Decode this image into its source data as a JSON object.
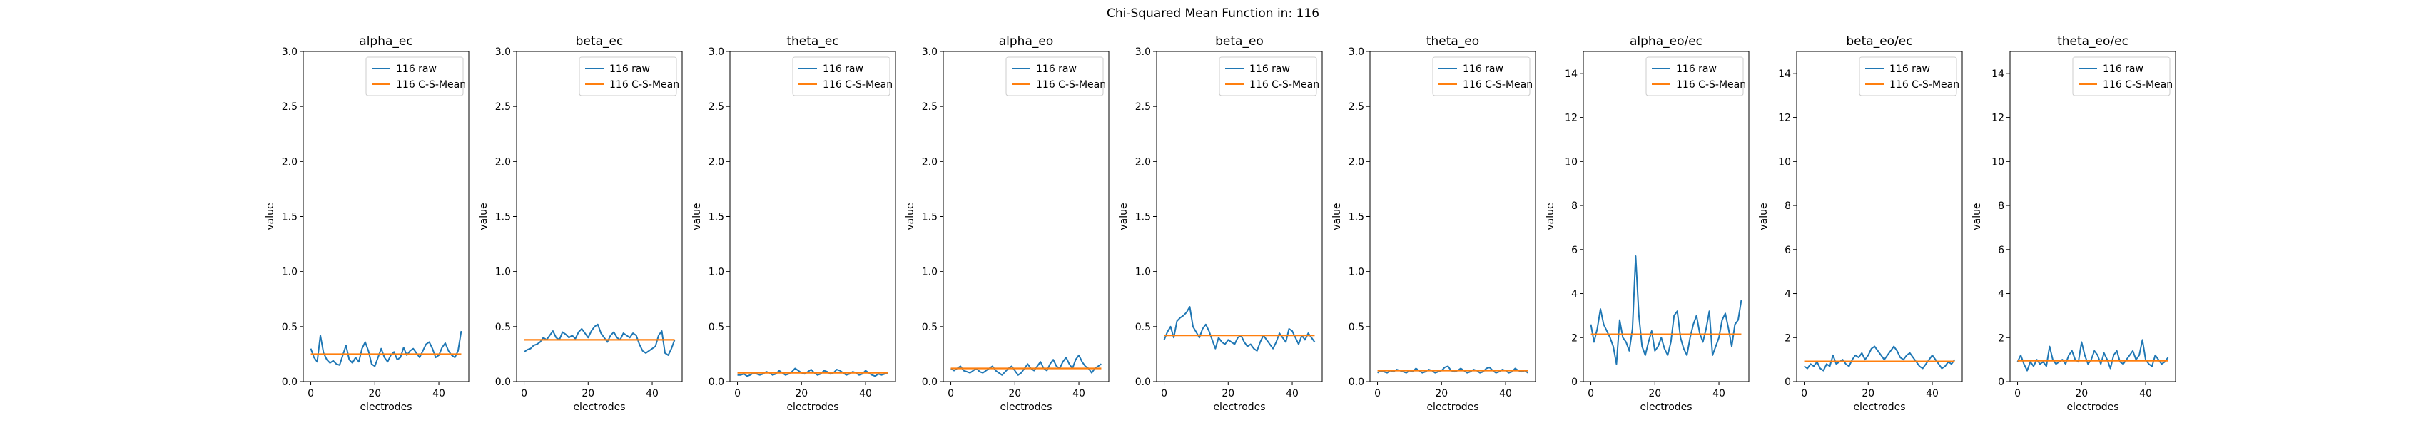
{
  "figure": {
    "title": "Chi-Squared Mean Function in: 116"
  },
  "colors": {
    "raw": "#1f77b4",
    "mean": "#ff7f0e",
    "axis": "#000000",
    "legend_border": "#cccccc"
  },
  "chart_data": [
    {
      "type": "line",
      "title": "alpha_ec",
      "xlabel": "electrodes",
      "ylabel": "value",
      "xlim": [
        -2.35,
        49.35
      ],
      "ylim": [
        0,
        3.0
      ],
      "xticks": [
        0,
        20,
        40
      ],
      "yticks": [
        0.0,
        0.5,
        1.0,
        1.5,
        2.0,
        2.5,
        3.0
      ],
      "legend_position": "top-right",
      "grid": false,
      "series": [
        {
          "name": "116 raw",
          "values": [
            0.3,
            0.22,
            0.18,
            0.42,
            0.26,
            0.2,
            0.17,
            0.19,
            0.16,
            0.15,
            0.24,
            0.33,
            0.2,
            0.17,
            0.22,
            0.18,
            0.3,
            0.36,
            0.28,
            0.16,
            0.14,
            0.22,
            0.3,
            0.22,
            0.18,
            0.24,
            0.27,
            0.2,
            0.22,
            0.31,
            0.24,
            0.28,
            0.3,
            0.26,
            0.22,
            0.28,
            0.34,
            0.36,
            0.3,
            0.22,
            0.24,
            0.31,
            0.35,
            0.28,
            0.24,
            0.22,
            0.28,
            0.46
          ]
        },
        {
          "name": "116 C-S-Mean",
          "values": [
            0.25,
            0.25
          ]
        }
      ]
    },
    {
      "type": "line",
      "title": "beta_ec",
      "xlabel": "electrodes",
      "ylabel": "value",
      "xlim": [
        -2.35,
        49.35
      ],
      "ylim": [
        0,
        3.0
      ],
      "xticks": [
        0,
        20,
        40
      ],
      "yticks": [
        0.0,
        0.5,
        1.0,
        1.5,
        2.0,
        2.5,
        3.0
      ],
      "legend_position": "top-right",
      "grid": false,
      "series": [
        {
          "name": "116 raw",
          "values": [
            0.27,
            0.29,
            0.3,
            0.33,
            0.34,
            0.36,
            0.4,
            0.38,
            0.42,
            0.46,
            0.4,
            0.38,
            0.45,
            0.43,
            0.4,
            0.42,
            0.39,
            0.45,
            0.48,
            0.44,
            0.4,
            0.46,
            0.5,
            0.52,
            0.44,
            0.4,
            0.36,
            0.42,
            0.45,
            0.4,
            0.38,
            0.44,
            0.42,
            0.4,
            0.44,
            0.42,
            0.34,
            0.28,
            0.26,
            0.28,
            0.3,
            0.32,
            0.42,
            0.46,
            0.26,
            0.24,
            0.3,
            0.38
          ]
        },
        {
          "name": "116 C-S-Mean",
          "values": [
            0.38,
            0.38
          ]
        }
      ]
    },
    {
      "type": "line",
      "title": "theta_ec",
      "xlabel": "electrodes",
      "ylabel": "value",
      "xlim": [
        -2.35,
        49.35
      ],
      "ylim": [
        0,
        3.0
      ],
      "xticks": [
        0,
        20,
        40
      ],
      "yticks": [
        0.0,
        0.5,
        1.0,
        1.5,
        2.0,
        2.5,
        3.0
      ],
      "legend_position": "top-right",
      "grid": false,
      "series": [
        {
          "name": "116 raw",
          "values": [
            0.06,
            0.06,
            0.07,
            0.05,
            0.06,
            0.08,
            0.07,
            0.06,
            0.07,
            0.09,
            0.08,
            0.06,
            0.07,
            0.1,
            0.08,
            0.06,
            0.07,
            0.09,
            0.12,
            0.1,
            0.08,
            0.07,
            0.09,
            0.11,
            0.08,
            0.06,
            0.07,
            0.1,
            0.09,
            0.07,
            0.08,
            0.11,
            0.1,
            0.08,
            0.06,
            0.07,
            0.09,
            0.08,
            0.06,
            0.07,
            0.1,
            0.08,
            0.06,
            0.05,
            0.07,
            0.06,
            0.07,
            0.08
          ]
        },
        {
          "name": "116 C-S-Mean",
          "values": [
            0.08,
            0.08
          ]
        }
      ]
    },
    {
      "type": "line",
      "title": "alpha_eo",
      "xlabel": "electrodes",
      "ylabel": "value",
      "xlim": [
        -2.35,
        49.35
      ],
      "ylim": [
        0,
        3.0
      ],
      "xticks": [
        0,
        20,
        40
      ],
      "yticks": [
        0.0,
        0.5,
        1.0,
        1.5,
        2.0,
        2.5,
        3.0
      ],
      "legend_position": "top-right",
      "grid": false,
      "series": [
        {
          "name": "116 raw",
          "values": [
            0.12,
            0.1,
            0.12,
            0.14,
            0.1,
            0.09,
            0.08,
            0.1,
            0.12,
            0.09,
            0.08,
            0.1,
            0.12,
            0.14,
            0.1,
            0.08,
            0.06,
            0.09,
            0.12,
            0.14,
            0.1,
            0.06,
            0.08,
            0.12,
            0.16,
            0.12,
            0.1,
            0.14,
            0.18,
            0.12,
            0.1,
            0.16,
            0.2,
            0.14,
            0.12,
            0.18,
            0.22,
            0.16,
            0.12,
            0.2,
            0.24,
            0.18,
            0.14,
            0.12,
            0.08,
            0.12,
            0.14,
            0.16
          ]
        },
        {
          "name": "116 C-S-Mean",
          "values": [
            0.12,
            0.12
          ]
        }
      ]
    },
    {
      "type": "line",
      "title": "beta_eo",
      "xlabel": "electrodes",
      "ylabel": "value",
      "xlim": [
        -2.35,
        49.35
      ],
      "ylim": [
        0,
        3.0
      ],
      "xticks": [
        0,
        20,
        40
      ],
      "yticks": [
        0.0,
        0.5,
        1.0,
        1.5,
        2.0,
        2.5,
        3.0
      ],
      "legend_position": "top-right",
      "grid": false,
      "series": [
        {
          "name": "116 raw",
          "values": [
            0.38,
            0.45,
            0.5,
            0.4,
            0.55,
            0.58,
            0.6,
            0.63,
            0.68,
            0.5,
            0.45,
            0.4,
            0.48,
            0.52,
            0.46,
            0.38,
            0.3,
            0.4,
            0.36,
            0.34,
            0.38,
            0.36,
            0.34,
            0.4,
            0.42,
            0.36,
            0.32,
            0.34,
            0.3,
            0.28,
            0.36,
            0.42,
            0.38,
            0.34,
            0.3,
            0.36,
            0.44,
            0.4,
            0.36,
            0.48,
            0.46,
            0.4,
            0.34,
            0.42,
            0.38,
            0.44,
            0.4,
            0.36
          ]
        },
        {
          "name": "116 C-S-Mean",
          "values": [
            0.42,
            0.42
          ]
        }
      ]
    },
    {
      "type": "line",
      "title": "theta_eo",
      "xlabel": "electrodes",
      "ylabel": "value",
      "xlim": [
        -2.35,
        49.35
      ],
      "ylim": [
        0,
        3.0
      ],
      "xticks": [
        0,
        20,
        40
      ],
      "yticks": [
        0.0,
        0.5,
        1.0,
        1.5,
        2.0,
        2.5,
        3.0
      ],
      "legend_position": "top-right",
      "grid": false,
      "series": [
        {
          "name": "116 raw",
          "values": [
            0.08,
            0.1,
            0.09,
            0.08,
            0.1,
            0.09,
            0.11,
            0.1,
            0.09,
            0.08,
            0.1,
            0.09,
            0.12,
            0.1,
            0.08,
            0.09,
            0.11,
            0.1,
            0.08,
            0.09,
            0.1,
            0.13,
            0.14,
            0.1,
            0.09,
            0.1,
            0.12,
            0.1,
            0.08,
            0.09,
            0.11,
            0.1,
            0.08,
            0.09,
            0.12,
            0.13,
            0.1,
            0.08,
            0.09,
            0.11,
            0.1,
            0.08,
            0.09,
            0.12,
            0.1,
            0.09,
            0.1,
            0.08
          ]
        },
        {
          "name": "116 C-S-Mean",
          "values": [
            0.1,
            0.1
          ]
        }
      ]
    },
    {
      "type": "line",
      "title": "alpha_eo/ec",
      "xlabel": "electrodes",
      "ylabel": "value",
      "xlim": [
        -2.35,
        49.35
      ],
      "ylim": [
        0,
        15
      ],
      "xticks": [
        0,
        20,
        40
      ],
      "yticks": [
        0,
        2,
        4,
        6,
        8,
        10,
        12,
        14
      ],
      "legend_position": "top-right",
      "grid": false,
      "series": [
        {
          "name": "116 raw",
          "values": [
            2.6,
            1.8,
            2.4,
            3.3,
            2.6,
            2.3,
            2.0,
            1.6,
            0.8,
            2.8,
            2.0,
            1.8,
            1.4,
            2.4,
            5.7,
            3.0,
            1.6,
            1.2,
            1.8,
            2.3,
            1.4,
            1.6,
            2.0,
            1.5,
            1.2,
            1.8,
            3.0,
            3.2,
            2.0,
            1.5,
            1.2,
            2.0,
            2.6,
            3.0,
            2.2,
            1.8,
            2.4,
            3.2,
            1.2,
            1.6,
            2.0,
            2.8,
            3.1,
            2.4,
            1.6,
            2.6,
            2.8,
            3.7
          ]
        },
        {
          "name": "116 C-S-Mean",
          "values": [
            2.15,
            2.15
          ]
        }
      ]
    },
    {
      "type": "line",
      "title": "beta_eo/ec",
      "xlabel": "electrodes",
      "ylabel": "value",
      "xlim": [
        -2.35,
        49.35
      ],
      "ylim": [
        0,
        15
      ],
      "xticks": [
        0,
        20,
        40
      ],
      "yticks": [
        0,
        2,
        4,
        6,
        8,
        10,
        12,
        14
      ],
      "legend_position": "top-right",
      "grid": false,
      "series": [
        {
          "name": "116 raw",
          "values": [
            0.7,
            0.6,
            0.8,
            0.7,
            0.9,
            0.6,
            0.5,
            0.8,
            0.7,
            1.2,
            0.8,
            0.9,
            1.0,
            0.8,
            0.7,
            1.0,
            1.2,
            1.1,
            1.3,
            1.0,
            1.2,
            1.5,
            1.6,
            1.4,
            1.2,
            1.0,
            1.2,
            1.4,
            1.6,
            1.4,
            1.1,
            1.0,
            1.2,
            1.3,
            1.1,
            0.9,
            0.7,
            0.6,
            0.8,
            1.0,
            1.2,
            1.0,
            0.8,
            0.6,
            0.7,
            0.9,
            0.8,
            1.0
          ]
        },
        {
          "name": "116 C-S-Mean",
          "values": [
            0.92,
            0.92
          ]
        }
      ]
    },
    {
      "type": "line",
      "title": "theta_eo/ec",
      "xlabel": "electrodes",
      "ylabel": "value",
      "xlim": [
        -2.35,
        49.35
      ],
      "ylim": [
        0,
        15
      ],
      "xticks": [
        0,
        20,
        40
      ],
      "yticks": [
        0,
        2,
        4,
        6,
        8,
        10,
        12,
        14
      ],
      "legend_position": "top-right",
      "grid": false,
      "series": [
        {
          "name": "116 raw",
          "values": [
            0.9,
            1.2,
            0.8,
            0.5,
            0.9,
            0.7,
            1.0,
            0.8,
            0.9,
            0.7,
            1.6,
            1.0,
            0.8,
            0.9,
            1.0,
            0.8,
            1.2,
            1.4,
            1.0,
            0.9,
            1.8,
            1.2,
            0.8,
            1.0,
            1.4,
            1.2,
            0.8,
            1.3,
            1.0,
            0.6,
            1.2,
            1.4,
            0.9,
            0.8,
            1.0,
            1.2,
            1.4,
            1.0,
            1.2,
            1.9,
            1.0,
            0.8,
            0.7,
            1.2,
            1.0,
            0.8,
            0.9,
            1.1
          ]
        },
        {
          "name": "116 C-S-Mean",
          "values": [
            0.95,
            0.95
          ]
        }
      ]
    }
  ]
}
